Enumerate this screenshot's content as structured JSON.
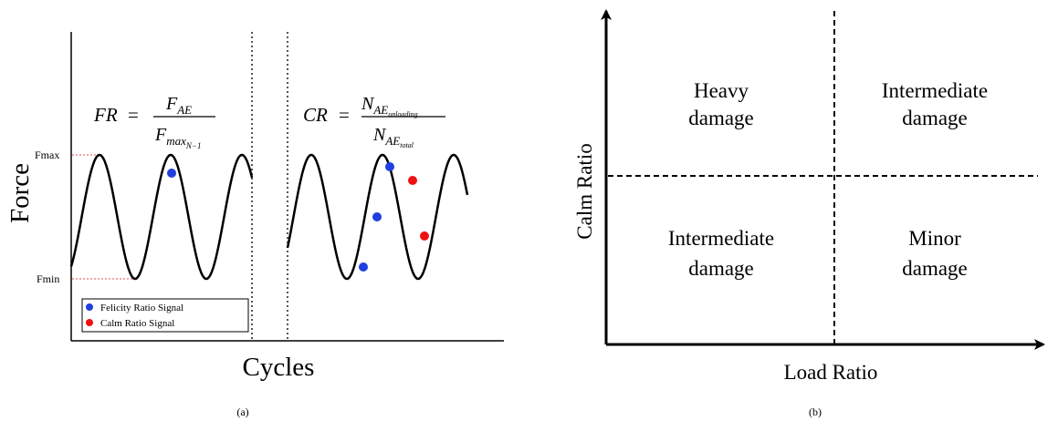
{
  "panel_a": {
    "y_axis_label": "Force",
    "x_axis_label": "Cycles",
    "fmax_label": "Fmax",
    "fmin_label": "Fmin",
    "caption": "(a)",
    "fr_formula": {
      "lhs": "FR",
      "eq": "=",
      "num_base": "F",
      "num_sub": "AE",
      "den_base": "F",
      "den_sub": "max",
      "den_subsub": "N−1"
    },
    "cr_formula": {
      "lhs": "CR",
      "eq": "=",
      "num_base": "N",
      "num_sub": "AE",
      "num_subsub": "unloading",
      "den_base": "N",
      "den_sub": "AE",
      "den_subsub": "total"
    },
    "legend": [
      {
        "label": "Felicity Ratio Signal",
        "color": "#1f3fe0"
      },
      {
        "label": "Calm Ratio Signal",
        "color": "#ee1111"
      }
    ]
  },
  "panel_b": {
    "x_axis_label": "Load Ratio",
    "y_axis_label": "Calm Ratio",
    "caption": "(b)",
    "quadrants": {
      "top_left": [
        "Heavy",
        "damage"
      ],
      "top_right": [
        "Intermediate",
        "damage"
      ],
      "bottom_left": [
        "Intermediate",
        "damage"
      ],
      "bottom_right": [
        "Minor",
        "damage"
      ]
    }
  },
  "colors": {
    "felicity_dot": "#1f3fe0",
    "calm_dot": "#ee1111",
    "guide_line": "#e05050"
  }
}
